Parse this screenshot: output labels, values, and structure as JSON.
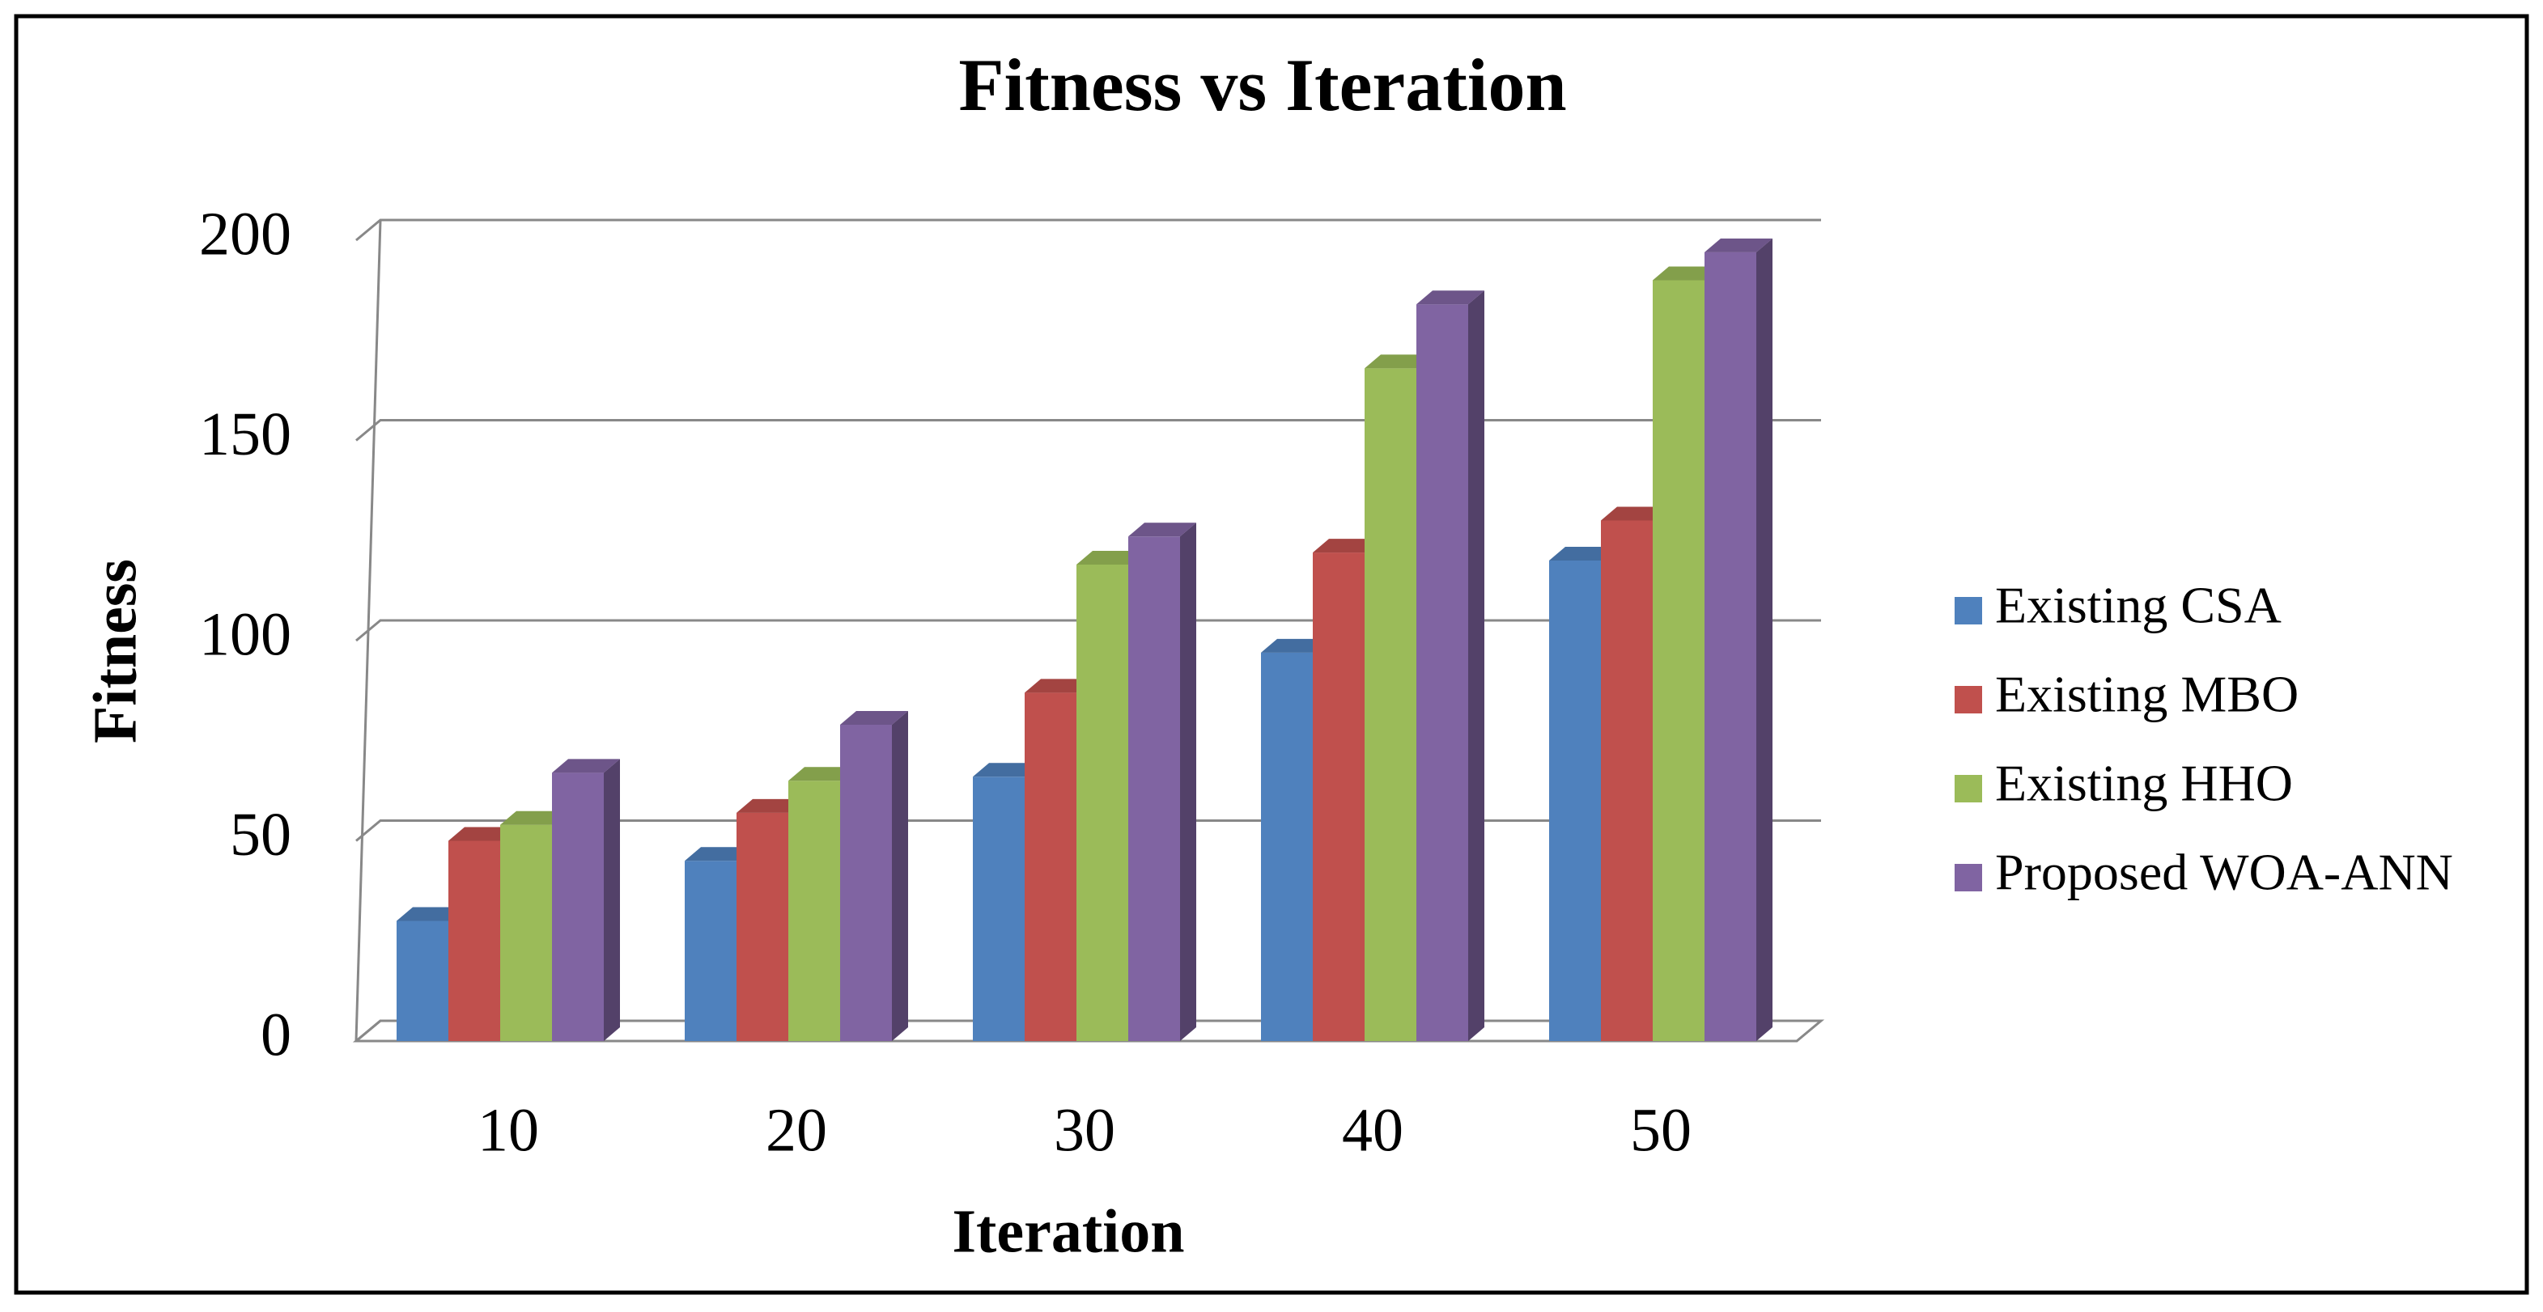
{
  "chart_data": {
    "type": "bar",
    "title": "Fitness vs Iteration",
    "x_label": "Iteration",
    "y_label": "Fitness",
    "categories": [
      "10",
      "20",
      "30",
      "40",
      "50"
    ],
    "series": [
      {
        "name": "Existing CSA",
        "color": "#4f81bd",
        "values": [
          30,
          45,
          66,
          97,
          120
        ]
      },
      {
        "name": "Existing MBO",
        "color": "#c0504d",
        "values": [
          50,
          57,
          87,
          122,
          130
        ]
      },
      {
        "name": "Existing HHO",
        "color": "#9bbb59",
        "values": [
          54,
          65,
          119,
          168,
          190
        ]
      },
      {
        "name": "Proposed WOA-ANN",
        "color": "#8064a2",
        "values": [
          67,
          79,
          126,
          184,
          197
        ]
      }
    ],
    "ylim": [
      0,
      200
    ],
    "yticks": [
      0,
      50,
      100,
      150,
      200
    ],
    "grid": true,
    "legend": "right"
  }
}
